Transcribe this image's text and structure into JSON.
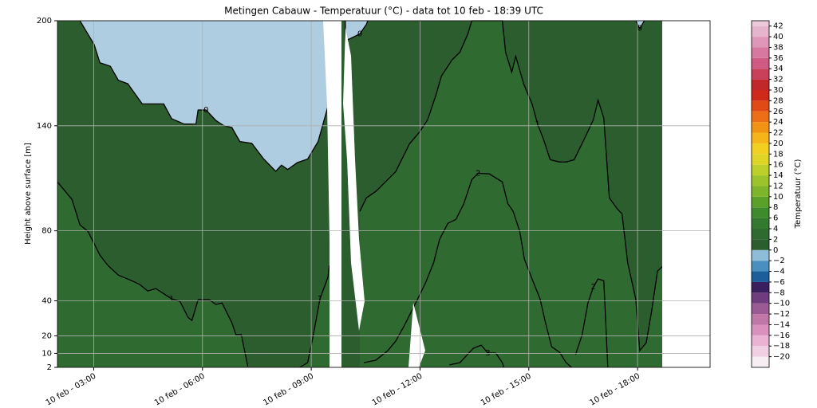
{
  "chart_data": {
    "type": "contour",
    "title": "Metingen Cabauw - Temperatuur (°C) - data tot 10 feb - 18:39 UTC",
    "ylabel": "Height above surface [m]",
    "xlim": [
      2,
      20
    ],
    "xticks": [
      {
        "value": 3,
        "label": "10 feb - 03:00"
      },
      {
        "value": 6,
        "label": "10 feb - 06:00"
      },
      {
        "value": 9,
        "label": "10 feb - 09:00"
      },
      {
        "value": 12,
        "label": "10 feb - 12:00"
      },
      {
        "value": 15,
        "label": "10 feb - 15:00"
      },
      {
        "value": 18,
        "label": "10 feb - 18:00"
      }
    ],
    "ylim": [
      2,
      200
    ],
    "yticks": [
      2,
      10,
      20,
      40,
      80,
      140,
      200
    ],
    "grid": true,
    "background": "#2b5d2e",
    "series": [
      {
        "name": "0",
        "color": "#000000",
        "fill": "#aecde1",
        "fill_to": "top",
        "x": [
          2.62,
          2.88,
          3.01,
          3.17,
          3.46,
          3.68,
          3.94,
          4.34,
          4.93,
          5.15,
          5.49,
          5.82,
          5.88,
          6.1,
          6.37,
          6.59,
          6.81,
          7.03,
          7.36,
          7.69,
          8.02,
          8.18,
          8.35,
          8.62,
          8.9,
          9.19,
          9.46,
          null,
          9.94,
          9.94,
          10.07,
          10.34,
          10.52,
          10.56,
          null,
          17.95,
          18.06,
          18.19
        ],
        "y": [
          200,
          191,
          186.5,
          176,
          174,
          166,
          164,
          152.5,
          152.5,
          144,
          141,
          141,
          149,
          149,
          143,
          140,
          139,
          131,
          130,
          121,
          114,
          117.5,
          115,
          119,
          121,
          131,
          151,
          null,
          200,
          188.8,
          189.7,
          192.5,
          197.9,
          200,
          null,
          200,
          195.6,
          200
        ]
      },
      {
        "name": "1",
        "color": "#000000",
        "fill": "#2f6a30",
        "fill_to": "bottom",
        "x": [
          2,
          2.4,
          2.62,
          2.84,
          3.17,
          3.39,
          3.68,
          4.05,
          4.27,
          4.49,
          4.71,
          5.15,
          5.38,
          5.6,
          5.71,
          5.88,
          6.19,
          6.37,
          6.54,
          6.81,
          6.92,
          7.07,
          7.25,
          null,
          8.68,
          8.9,
          9.06,
          9.24,
          9.46,
          9.5,
          null,
          10.34,
          10.52,
          10.78,
          11.0,
          11.33,
          11.71,
          11.99,
          12.21,
          12.43,
          12.59,
          12.88,
          13.1,
          13.32,
          13.43,
          14.27,
          14.36,
          14.53,
          14.64,
          14.86,
          15.09,
          15.24,
          15.41,
          15.59,
          15.85,
          16.03,
          16.25,
          16.52,
          16.78,
          16.91,
          17.07,
          17.22,
          17.44,
          17.57,
          17.73,
          17.95,
          18.06,
          18.24,
          18.39,
          18.55,
          18.72
        ],
        "y": [
          107.9,
          97.9,
          83.4,
          79.7,
          66.1,
          60.2,
          54.7,
          51.5,
          49.3,
          45.6,
          47,
          41.1,
          39.7,
          30.6,
          28.8,
          40.6,
          40.6,
          37.9,
          38.8,
          27.5,
          20.7,
          20.7,
          2.5,
          null,
          2,
          4.7,
          20.6,
          41.1,
          53.4,
          60.2,
          null,
          91.1,
          98.8,
          102.5,
          107,
          113.8,
          129.7,
          136.5,
          143.4,
          157,
          168.4,
          177.5,
          182,
          192.5,
          200,
          200,
          182,
          170.6,
          179.7,
          163.8,
          152.5,
          141.1,
          132,
          120.6,
          119.3,
          119.3,
          120.6,
          132,
          143.4,
          154.7,
          144.3,
          98.8,
          92.5,
          89.7,
          61.5,
          41.1,
          11.5,
          16.1,
          34.3,
          57,
          60.2
        ]
      },
      {
        "name": "2",
        "color": "#000000",
        "x": [
          10.45,
          10.78,
          11.11,
          11.33,
          11.55,
          11.88,
          12.15,
          12.37,
          12.54,
          12.77,
          12.99,
          13.21,
          13.43,
          13.6,
          13.91,
          14.27,
          14.42,
          14.57,
          14.75,
          14.88,
          15.09,
          15.31,
          15.46,
          15.63,
          15.85,
          16.03,
          16.18,
          null,
          16.29,
          16.47,
          16.63,
          16.78,
          16.91,
          17.07,
          17.18
        ],
        "y": [
          4.7,
          6.1,
          11.5,
          17,
          25.2,
          38.8,
          50.2,
          61.5,
          75.2,
          84.3,
          86.5,
          95.6,
          109.3,
          112.9,
          112.5,
          107.9,
          95.6,
          91.1,
          79.7,
          63.8,
          52.5,
          41.1,
          27.5,
          13.8,
          10.6,
          4.7,
          2,
          null,
          9.3,
          20.6,
          38.8,
          47.9,
          52.5,
          51.5,
          2
        ]
      },
      {
        "name": "3",
        "color": "#000000",
        "x": [
          12.81,
          13.1,
          13.47,
          13.69,
          13.87,
          14.09,
          14.27,
          14.31
        ],
        "y": [
          3.4,
          4.7,
          12.9,
          14.7,
          10.2,
          10.2,
          4.7,
          2
        ]
      }
    ],
    "colorbar": {
      "label": "Temperatuur (°C)",
      "lim": [
        -22,
        43
      ],
      "ticks": [
        {
          "value": -20,
          "label": "−20"
        },
        {
          "value": -18,
          "label": "−18"
        },
        {
          "value": -16,
          "label": "−16"
        },
        {
          "value": -14,
          "label": "−14"
        },
        {
          "value": -12,
          "label": "−12"
        },
        {
          "value": -10,
          "label": "−10"
        },
        {
          "value": -8,
          "label": "−8"
        },
        {
          "value": -6,
          "label": "−6"
        },
        {
          "value": -4,
          "label": "−4"
        },
        {
          "value": -2,
          "label": "−2"
        },
        0,
        2,
        4,
        6,
        8,
        10,
        12,
        14,
        16,
        18,
        20,
        22,
        24,
        26,
        28,
        30,
        32,
        34,
        36,
        38,
        40,
        42
      ],
      "colors": [
        "#f6eef3",
        "#f2d0e4",
        "#eab3d4",
        "#d990bd",
        "#c077a8",
        "#9a5a93",
        "#6f3d7e",
        "#3a1f5e",
        "#1c5d9a",
        "#4a8fbf",
        "#8fbcd9",
        "#2b5d2e",
        "#2f6a30",
        "#35782f",
        "#3f8a2c",
        "#5aa029",
        "#7fb52a",
        "#9dc32c",
        "#bccf2a",
        "#dfd527",
        "#f2d021",
        "#f5b51a",
        "#f29316",
        "#ec6e16",
        "#e04a16",
        "#cf2a19",
        "#c0282c",
        "#c9405a",
        "#cf5a83",
        "#d678a0",
        "#de97b8",
        "#e6b4cc",
        "#ecc9da"
      ]
    }
  }
}
